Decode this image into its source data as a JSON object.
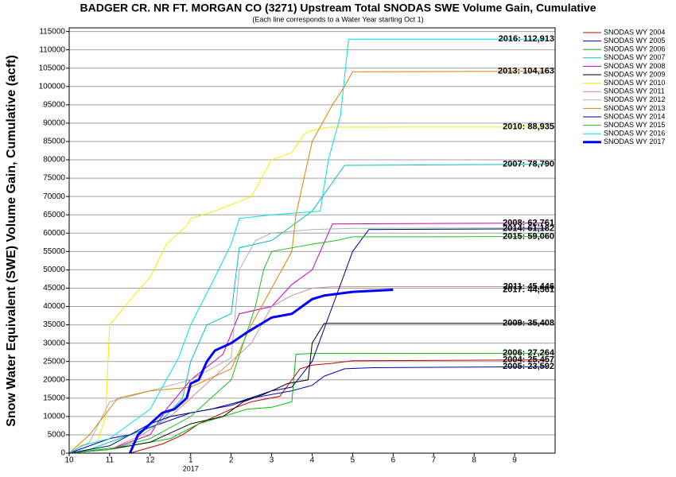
{
  "chart_data": {
    "type": "line",
    "title": "BADGER CR. NR FT. MORGAN CO (3271) Upstream Total SNODAS SWE Volume Gain, Cumulative",
    "subtitle": "(Each line corresponds to a Water Year starting Oct 1)",
    "y_label": "Snow Water Equivalent (SWE) Volume Gain, Cumulative (acft)",
    "year_label": "2017",
    "xlim": [
      0,
      12
    ],
    "xticks": [
      {
        "value": 0,
        "label": "10"
      },
      {
        "value": 1,
        "label": "11"
      },
      {
        "value": 2,
        "label": "12"
      },
      {
        "value": 3,
        "label": "1"
      },
      {
        "value": 4,
        "label": "2"
      },
      {
        "value": 5,
        "label": "3"
      },
      {
        "value": 6,
        "label": "4"
      },
      {
        "value": 7,
        "label": "5"
      },
      {
        "value": 8,
        "label": "6"
      },
      {
        "value": 9,
        "label": "7"
      },
      {
        "value": 10,
        "label": "8"
      },
      {
        "value": 11,
        "label": "9"
      }
    ],
    "ylim": [
      0,
      116000
    ],
    "yticks": [
      0,
      5000,
      10000,
      15000,
      20000,
      25000,
      30000,
      35000,
      40000,
      45000,
      50000,
      55000,
      60000,
      65000,
      70000,
      75000,
      80000,
      85000,
      90000,
      95000,
      100000,
      105000,
      110000,
      115000
    ],
    "grid": true,
    "legend": "top-right",
    "series": [
      {
        "name": "SNODAS WY 2004",
        "color": "#c00000",
        "label": "2004: 25,457",
        "x": [
          0,
          1.5,
          2.3,
          2.8,
          3.2,
          3.6,
          4.0,
          4.5,
          5.2,
          5.7,
          6.0,
          6.5,
          7.0,
          11.8
        ],
        "values": [
          0,
          0,
          2500,
          5000,
          8000,
          10000,
          12000,
          14000,
          15500,
          23000,
          24000,
          24500,
          25200,
          25457
        ]
      },
      {
        "name": "SNODAS WY 2005",
        "color": "#0000c0",
        "label": "2005: 23,592",
        "x": [
          0,
          1.0,
          1.5,
          2.5,
          3.0,
          4.0,
          4.5,
          5.5,
          6.0,
          6.3,
          6.8,
          7.5,
          11.8
        ],
        "values": [
          0,
          4000,
          5000,
          9000,
          11000,
          13000,
          15000,
          17000,
          18500,
          21000,
          23000,
          23300,
          23592
        ]
      },
      {
        "name": "SNODAS WY 2006",
        "color": "#00c000",
        "label": "2006: 27,264",
        "x": [
          0,
          1.5,
          2.5,
          3.2,
          3.8,
          4.4,
          5.0,
          5.5,
          5.6,
          6.0,
          11.8
        ],
        "values": [
          0,
          2000,
          4000,
          8000,
          10000,
          12000,
          12500,
          14000,
          27000,
          27200,
          27264
        ]
      },
      {
        "name": "SNODAS WY 2007",
        "color": "#00c0c0",
        "label": "2007: 78,790",
        "x": [
          0,
          0.5,
          1.0,
          1.5,
          2.2,
          2.8,
          3.0,
          3.4,
          4.0,
          4.2,
          5.0,
          6.0,
          6.8,
          11.8
        ],
        "values": [
          0,
          1000,
          3000,
          5000,
          8000,
          15000,
          25000,
          35000,
          38000,
          56000,
          58000,
          66000,
          78500,
          78790
        ]
      },
      {
        "name": "SNODAS WY 2008",
        "color": "#c000c0",
        "label": "2008: 62,761",
        "x": [
          0,
          1,
          2,
          2.4,
          3.0,
          3.8,
          4.2,
          5.0,
          5.5,
          6.0,
          6.5,
          11.8
        ],
        "values": [
          0,
          1000,
          5000,
          12000,
          20000,
          27000,
          38000,
          40000,
          46000,
          50000,
          62500,
          62761
        ]
      },
      {
        "name": "SNODAS WY 2009",
        "color": "#000000",
        "label": "2009: 35,408",
        "x": [
          0,
          1.0,
          2.0,
          3.0,
          3.8,
          4.3,
          4.8,
          5.4,
          5.9,
          6.0,
          6.3,
          11.8
        ],
        "values": [
          0,
          1000,
          3000,
          8000,
          10000,
          14000,
          16000,
          19000,
          20000,
          30000,
          35400,
          35408
        ]
      },
      {
        "name": "SNODAS WY 2010",
        "color": "#f0f000",
        "label": "2010: 88,935",
        "x": [
          0,
          0.2,
          0.7,
          0.9,
          1.0,
          1.6,
          2.0,
          2.4,
          2.9,
          3.0,
          3.6,
          4.5,
          5.0,
          5.5,
          5.8,
          6.0,
          6.4,
          11.8
        ],
        "values": [
          0,
          2000,
          3000,
          10000,
          35000,
          43000,
          48000,
          57000,
          62000,
          64000,
          66000,
          70000,
          80000,
          82000,
          87000,
          88000,
          88900,
          88935
        ]
      },
      {
        "name": "SNODAS WY 2011",
        "color": "#c89090",
        "label": "2011: 45,446",
        "x": [
          0,
          1,
          1.8,
          2.5,
          3.0,
          3.5,
          4.0,
          4.5,
          5.0,
          5.5,
          6.0,
          6.5,
          11.8
        ],
        "values": [
          0,
          1000,
          5000,
          10000,
          15000,
          20000,
          25000,
          30000,
          40000,
          43000,
          45000,
          45400,
          45446
        ]
      },
      {
        "name": "SNODAS WY 2012",
        "color": "#b0b0b0",
        "x": [
          0,
          0.5,
          1.0,
          2.0,
          3.0,
          4.0,
          4.2,
          4.6,
          5.0,
          6.0,
          7.0,
          11.8
        ],
        "values": [
          0,
          3000,
          14000,
          17000,
          20000,
          26000,
          50000,
          58000,
          60000,
          61000,
          61300,
          61500
        ]
      },
      {
        "name": "SNODAS WY 2013",
        "color": "#e08000",
        "label": "2013: 104,163",
        "x": [
          0,
          0.5,
          1.2,
          2.0,
          3.0,
          4.0,
          4.5,
          5.0,
          5.5,
          5.6,
          6.0,
          6.5,
          6.8,
          7.0,
          11.8
        ],
        "values": [
          0,
          5000,
          15000,
          17000,
          18000,
          23000,
          35000,
          45000,
          55000,
          65000,
          85000,
          95000,
          100000,
          104000,
          104163
        ]
      },
      {
        "name": "SNODAS WY 2014",
        "color": "#000080",
        "label": "2014: 61,182",
        "x": [
          0,
          1,
          2,
          2.5,
          3,
          3.5,
          4.2,
          5.0,
          5.5,
          6.0,
          7.0,
          7.4,
          11.8
        ],
        "values": [
          0,
          2000,
          8000,
          10000,
          11000,
          12000,
          14000,
          17000,
          18000,
          25000,
          55000,
          61000,
          61182
        ]
      },
      {
        "name": "SNODAS WY 2015",
        "color": "#20c020",
        "label": "2015: 59,060",
        "x": [
          0,
          1,
          2,
          3,
          3.5,
          4.0,
          4.6,
          4.8,
          5.0,
          6.0,
          6.6,
          7.0,
          11.8
        ],
        "values": [
          0,
          1000,
          4000,
          10000,
          15000,
          20000,
          40000,
          50000,
          55000,
          57000,
          58000,
          59000,
          59060
        ]
      },
      {
        "name": "SNODAS WY 2016",
        "color": "#00e0e0",
        "label": "2016: 112,913",
        "x": [
          0,
          0.3,
          1.0,
          2.0,
          2.7,
          3.0,
          3.6,
          4.0,
          4.2,
          5.0,
          6.2,
          6.4,
          6.7,
          6.9,
          11.8
        ],
        "values": [
          0,
          2000,
          4000,
          12000,
          26000,
          35000,
          48000,
          57000,
          64000,
          65000,
          66000,
          80000,
          92000,
          112913,
          112913
        ]
      },
      {
        "name": "SNODAS WY 2017",
        "color": "#0000ff",
        "label": "2017: 44,561",
        "x": [
          1.5,
          1.7,
          2.0,
          2.3,
          2.6,
          2.9,
          3.0,
          3.2,
          3.4,
          3.6,
          4.0,
          4.4,
          5.0,
          5.5,
          6.0,
          6.3,
          7.0,
          8.0
        ],
        "values": [
          0,
          5000,
          8000,
          11000,
          12000,
          15000,
          19000,
          20000,
          25000,
          28000,
          30000,
          33000,
          37000,
          38000,
          42000,
          43000,
          44000,
          44561
        ]
      }
    ]
  }
}
